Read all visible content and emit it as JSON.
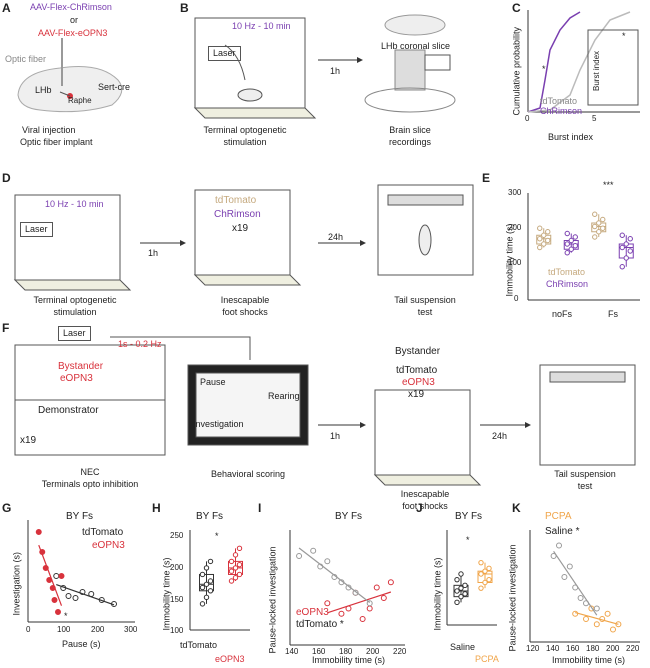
{
  "colors": {
    "red": "#d8323c",
    "purple": "#7a3fb0",
    "tan": "#c5a97e",
    "orange": "#f0a54a",
    "grey": "#999999",
    "dark": "#333333"
  },
  "panelA": {
    "label": "A",
    "virus1": "AAV-Flex-ChRimson",
    "or": "or",
    "virus2": "AAV-Flex-eOPN3",
    "optic": "Optic fiber",
    "lhb": "LHb",
    "raphe": "Raphe",
    "sert": "Sert-cre",
    "caption1": "Viral injection",
    "caption2": "Optic fiber implant"
  },
  "panelB": {
    "label": "B",
    "protocol": "10 Hz - 10 min",
    "laser": "Laser",
    "arrow": "1h",
    "slice": "LHb coronal slice",
    "caption1a": "Terminal optogenetic",
    "caption1b": "stimulation",
    "caption2a": "Brain slice",
    "caption2b": "recordings"
  },
  "panelC": {
    "label": "C",
    "ylabel": "Cumulative probability",
    "xlabel": "Burst index",
    "ticks": [
      "0",
      "5"
    ],
    "legend1": "tdTomato",
    "legend2": "ChRimson",
    "star": "*",
    "insetLabel": "Burst index",
    "insetStar": "*"
  },
  "panelD": {
    "label": "D",
    "protocol": "10 Hz - 10 min",
    "laser": "Laser",
    "arrow1": "1h",
    "group1": "tdTomato",
    "group2": "ChRimson",
    "count": "x19",
    "arrow2": "24h",
    "cap1a": "Terminal optogenetic",
    "cap1b": "stimulation",
    "cap2a": "Inescapable",
    "cap2b": "foot shocks",
    "cap3a": "Tail suspension",
    "cap3b": "test"
  },
  "panelE": {
    "label": "E",
    "ylabel": "Immobility time (s)",
    "yticks": [
      "300",
      "200",
      "100",
      "0"
    ],
    "legend1": "tdTomato",
    "legend2": "ChRimson",
    "x1": "noFs",
    "x2": "Fs",
    "sig": "***"
  },
  "panelF": {
    "label": "F",
    "laser": "Laser",
    "protocol": "1s - 0.2 Hz",
    "bystander": "Bystander",
    "eopn3": "eOPN3",
    "demonstrator": "Demonstrator",
    "count1": "x19",
    "cap1a": "NEC",
    "cap1b": "Terminals opto inhibition",
    "pause": "Pause",
    "rearing": "Rearing",
    "investigation": "Investigation",
    "cap2": "Behavioral scoring",
    "arrow1": "1h",
    "title3": "Bystander",
    "group1": "tdTomato",
    "group2": "eOPN3",
    "count2": "x19",
    "cap3a": "Inescapable",
    "cap3b": "foot shocks",
    "arrow2": "24h",
    "cap4a": "Tail suspension",
    "cap4b": "test"
  },
  "panelG": {
    "label": "G",
    "title": "BY Fs",
    "legend1": "tdTomato",
    "legend2": "eOPN3",
    "ylabel": "Investigation (s)",
    "xlabel": "Pause (s)",
    "xticks": [
      "0",
      "100",
      "200",
      "300"
    ],
    "star": "*"
  },
  "panelH": {
    "label": "H",
    "title": "BY Fs",
    "ylabel": "Immobility time (s)",
    "yticks": [
      "250",
      "200",
      "150",
      "100"
    ],
    "x1": "tdTomato",
    "x2": "eOPN3",
    "star": "*"
  },
  "panelI": {
    "label": "I",
    "title": "BY Fs",
    "ylabel": "Pause-locked investigation",
    "xlabel": "Immobility time (s)",
    "xticks": [
      "140",
      "160",
      "180",
      "200",
      "220"
    ],
    "legend1": "eOPN3",
    "legend2": "tdTomato *"
  },
  "panelJ": {
    "label": "J",
    "title": "BY Fs",
    "ylabel": "Immobility time (s)",
    "x1": "Saline",
    "x2": "PCPA",
    "star": "*"
  },
  "panelK": {
    "label": "K",
    "legend1": "PCPA",
    "legend2": "Saline *",
    "ylabel": "Pause-locked investigation",
    "xlabel": "Immobility time (s)",
    "xticks": [
      "120",
      "140",
      "160",
      "180",
      "200",
      "220"
    ]
  },
  "chart_data": [
    {
      "panel": "E",
      "type": "box",
      "title": "",
      "ylabel": "Immobility time (s)",
      "ylim": [
        0,
        300
      ],
      "categories": [
        "noFs",
        "Fs"
      ],
      "series": [
        {
          "name": "tdTomato",
          "values": [
            [
              150,
              160,
              170,
              175,
              185,
              195,
              205
            ],
            [
              180,
              195,
              205,
              210,
              220,
              230,
              245
            ]
          ]
        },
        {
          "name": "ChRimson",
          "values": [
            [
              135,
              145,
              155,
              160,
              170,
              180,
              190
            ],
            [
              95,
              120,
              140,
              150,
              160,
              175,
              185
            ]
          ]
        }
      ]
    },
    {
      "panel": "G",
      "type": "scatter",
      "title": "BY Fs",
      "xlabel": "Pause (s)",
      "ylabel": "Investigation (s)",
      "xlim": [
        0,
        300
      ],
      "series": [
        {
          "name": "tdTomato",
          "x": [
            75,
            95,
            110,
            130,
            150,
            175,
            205,
            240
          ],
          "y": [
            210,
            180,
            160,
            155,
            170,
            165,
            150,
            140
          ]
        },
        {
          "name": "eOPN3",
          "x": [
            25,
            35,
            45,
            55,
            65,
            70,
            80,
            90
          ],
          "y": [
            320,
            270,
            230,
            200,
            180,
            150,
            120,
            210
          ]
        }
      ]
    },
    {
      "panel": "H",
      "type": "box",
      "title": "BY Fs",
      "ylabel": "Immobility time (s)",
      "ylim": [
        100,
        250
      ],
      "categories": [
        "tdTomato",
        "eOPN3"
      ],
      "series": [
        {
          "name": "tdTomato",
          "values": [
            140,
            150,
            160,
            165,
            170,
            175,
            185,
            195,
            205
          ]
        },
        {
          "name": "eOPN3",
          "values": [
            175,
            180,
            185,
            190,
            195,
            200,
            205,
            215,
            225
          ]
        }
      ]
    },
    {
      "panel": "I",
      "type": "scatter",
      "title": "BY Fs",
      "xlabel": "Immobility time (s)",
      "ylabel": "Pause-locked investigation",
      "xlim": [
        140,
        220
      ],
      "series": [
        {
          "name": "eOPN3",
          "x": [
            165,
            175,
            180,
            185,
            190,
            195,
            200,
            205,
            210
          ],
          "y": [
            0.35,
            0.25,
            0.3,
            0.45,
            0.2,
            0.3,
            0.5,
            0.4,
            0.55
          ]
        },
        {
          "name": "tdTomato",
          "x": [
            145,
            155,
            160,
            165,
            170,
            175,
            180,
            185,
            195
          ],
          "y": [
            0.8,
            0.85,
            0.7,
            0.75,
            0.6,
            0.55,
            0.5,
            0.45,
            0.35
          ]
        }
      ]
    },
    {
      "panel": "J",
      "type": "box",
      "title": "BY Fs",
      "ylabel": "Immobility time (s)",
      "categories": [
        "Saline",
        "PCPA"
      ],
      "series": [
        {
          "name": "Saline",
          "values": [
            140,
            150,
            155,
            160,
            165,
            170,
            180,
            190
          ]
        },
        {
          "name": "PCPA",
          "values": [
            165,
            175,
            180,
            190,
            195,
            200,
            210
          ]
        }
      ]
    },
    {
      "panel": "K",
      "type": "scatter",
      "xlabel": "Immobility time (s)",
      "ylabel": "Pause-locked investigation",
      "xlim": [
        120,
        220
      ],
      "series": [
        {
          "name": "PCPA",
          "x": [
            160,
            170,
            175,
            180,
            185,
            190,
            195,
            200
          ],
          "y": [
            0.25,
            0.2,
            0.3,
            0.15,
            0.2,
            0.25,
            0.1,
            0.15
          ]
        },
        {
          "name": "Saline",
          "x": [
            140,
            145,
            150,
            155,
            160,
            165,
            170,
            180
          ],
          "y": [
            0.8,
            0.9,
            0.6,
            0.7,
            0.5,
            0.4,
            0.35,
            0.3
          ]
        }
      ]
    }
  ]
}
